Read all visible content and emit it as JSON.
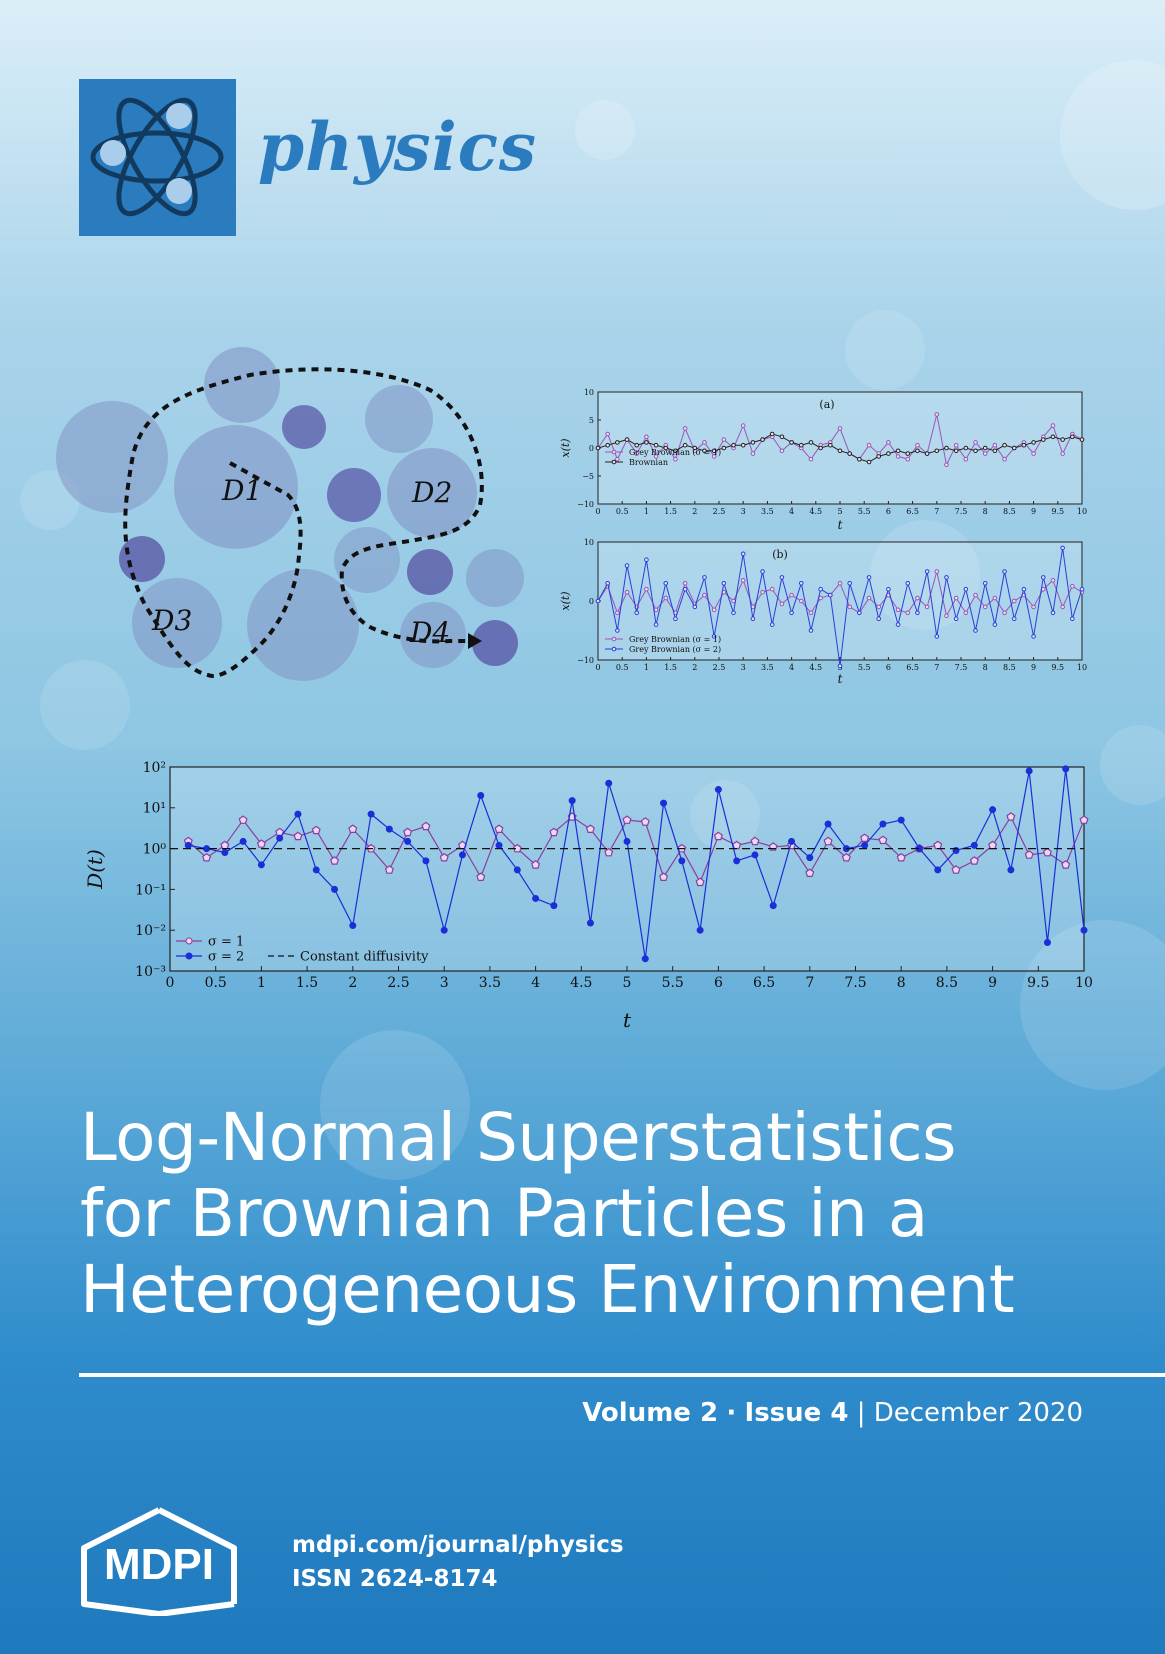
{
  "journal": {
    "name": "physics",
    "brand_color": "#2a7cbf"
  },
  "diagram": {
    "labels": [
      "D1",
      "D2",
      "D3",
      "D4"
    ]
  },
  "chart_data": [
    {
      "type": "line",
      "panel": "(a)",
      "ylabel": "x(t)",
      "xlabel": "t",
      "xlim": [
        0,
        10
      ],
      "ylim": [
        -10,
        10
      ],
      "yticks": [
        "10",
        "5",
        "0",
        "−5",
        "−10"
      ],
      "xticks": [
        "0",
        "0.5",
        "1",
        "1.5",
        "2",
        "2.5",
        "3",
        "3.5",
        "4",
        "4.5",
        "5",
        "5.5",
        "6",
        "6.5",
        "7",
        "7.5",
        "8",
        "8.5",
        "9",
        "9.5",
        "10"
      ],
      "series": [
        {
          "name": "Grey Brownian (σ = 1)",
          "color": "#9a55b8",
          "x": [
            0,
            0.2,
            0.4,
            0.6,
            0.8,
            1,
            1.2,
            1.4,
            1.6,
            1.8,
            2,
            2.2,
            2.4,
            2.6,
            2.8,
            3,
            3.2,
            3.4,
            3.6,
            3.8,
            4,
            4.2,
            4.4,
            4.6,
            4.8,
            5,
            5.2,
            5.4,
            5.6,
            5.8,
            6,
            6.2,
            6.4,
            6.6,
            6.8,
            7,
            7.2,
            7.4,
            7.6,
            7.8,
            8,
            8.2,
            8.4,
            8.6,
            8.8,
            9,
            9.2,
            9.4,
            9.6,
            9.8,
            10
          ],
          "y": [
            0,
            2.5,
            -2,
            1.5,
            -1,
            2,
            -1.5,
            0.5,
            -2,
            3.5,
            -0.5,
            1,
            -1.5,
            1.5,
            0,
            4,
            -1,
            1.5,
            2,
            -0.5,
            1,
            0,
            -2,
            0.5,
            1,
            3.5,
            -1,
            -2,
            0.5,
            -1,
            1,
            -1.5,
            -2,
            0.5,
            -1,
            6,
            -3,
            0.5,
            -2,
            1,
            -1,
            0.5,
            -2,
            0,
            1,
            -1,
            2,
            4,
            -1,
            2.5,
            1.5
          ]
        },
        {
          "name": "Brownian",
          "color": "#222222",
          "x": [
            0,
            0.2,
            0.4,
            0.6,
            0.8,
            1,
            1.2,
            1.4,
            1.6,
            1.8,
            2,
            2.2,
            2.4,
            2.6,
            2.8,
            3,
            3.2,
            3.4,
            3.6,
            3.8,
            4,
            4.2,
            4.4,
            4.6,
            4.8,
            5,
            5.2,
            5.4,
            5.6,
            5.8,
            6,
            6.2,
            6.4,
            6.6,
            6.8,
            7,
            7.2,
            7.4,
            7.6,
            7.8,
            8,
            8.2,
            8.4,
            8.6,
            8.8,
            9,
            9.2,
            9.4,
            9.6,
            9.8,
            10
          ],
          "y": [
            0,
            0.5,
            1,
            1.5,
            0.5,
            1,
            0.5,
            0,
            -0.5,
            0.5,
            0,
            -0.5,
            -0.5,
            0,
            0.5,
            0.5,
            1,
            1.5,
            2.5,
            2,
            1,
            0.5,
            1,
            0,
            0.5,
            -0.5,
            -1,
            -2,
            -2.5,
            -1.5,
            -1,
            -0.5,
            -1,
            -0.5,
            -1,
            -0.5,
            0,
            -0.5,
            0,
            -0.5,
            0,
            -0.5,
            0.5,
            0,
            0.5,
            1,
            1.5,
            2,
            1.5,
            2,
            1.5
          ]
        }
      ]
    },
    {
      "type": "line",
      "panel": "(b)",
      "ylabel": "x(t)",
      "xlabel": "t",
      "xlim": [
        0,
        10
      ],
      "ylim": [
        -10,
        10
      ],
      "yticks": [
        "10",
        "0",
        "−10"
      ],
      "xticks": [
        "0",
        "0.5",
        "1",
        "1.5",
        "2",
        "2.5",
        "3",
        "3.5",
        "4",
        "4.5",
        "5",
        "5.5",
        "6",
        "6.5",
        "7",
        "7.5",
        "8",
        "8.5",
        "9",
        "9.5",
        "10"
      ],
      "series": [
        {
          "name": "Grey Brownian (σ = 1)",
          "color": "#9a55b8",
          "x": [
            0,
            0.2,
            0.4,
            0.6,
            0.8,
            1,
            1.2,
            1.4,
            1.6,
            1.8,
            2,
            2.2,
            2.4,
            2.6,
            2.8,
            3,
            3.2,
            3.4,
            3.6,
            3.8,
            4,
            4.2,
            4.4,
            4.6,
            4.8,
            5,
            5.2,
            5.4,
            5.6,
            5.8,
            6,
            6.2,
            6.4,
            6.6,
            6.8,
            7,
            7.2,
            7.4,
            7.6,
            7.8,
            8,
            8.2,
            8.4,
            8.6,
            8.8,
            9,
            9.2,
            9.4,
            9.6,
            9.8,
            10
          ],
          "y": [
            0,
            2.5,
            -2,
            1.5,
            -1,
            2,
            -1.5,
            0.5,
            -2,
            3,
            -0.5,
            1,
            -1.5,
            1.5,
            0,
            3.5,
            -1,
            1.5,
            2,
            -0.5,
            1,
            0,
            -2,
            0.5,
            1,
            3,
            -1,
            -2,
            0.5,
            -1,
            1,
            -1.5,
            -2,
            0.5,
            -1,
            5,
            -2.5,
            0.5,
            -2,
            1,
            -1,
            0.5,
            -2,
            0,
            1,
            -1,
            2,
            3.5,
            -1,
            2.5,
            1.5
          ]
        },
        {
          "name": "Grey Brownian (σ = 2)",
          "color": "#2a3fd6",
          "x": [
            0,
            0.2,
            0.4,
            0.6,
            0.8,
            1,
            1.2,
            1.4,
            1.6,
            1.8,
            2,
            2.2,
            2.4,
            2.6,
            2.8,
            3,
            3.2,
            3.4,
            3.6,
            3.8,
            4,
            4.2,
            4.4,
            4.6,
            4.8,
            5,
            5.2,
            5.4,
            5.6,
            5.8,
            6,
            6.2,
            6.4,
            6.6,
            6.8,
            7,
            7.2,
            7.4,
            7.6,
            7.8,
            8,
            8.2,
            8.4,
            8.6,
            8.8,
            9,
            9.2,
            9.4,
            9.6,
            9.8,
            10
          ],
          "y": [
            0,
            3,
            -5,
            6,
            -2,
            7,
            -4,
            3,
            -3,
            2,
            -1,
            4,
            -6,
            3,
            -2,
            8,
            -3,
            5,
            -4,
            4,
            -2,
            3,
            -5,
            2,
            1,
            -11,
            3,
            -2,
            4,
            -3,
            2,
            -4,
            3,
            -2,
            5,
            -6,
            4,
            -3,
            2,
            -5,
            3,
            -4,
            5,
            -3,
            2,
            -6,
            4,
            -2,
            9,
            -3,
            2
          ]
        }
      ]
    },
    {
      "type": "line",
      "ylabel": "D(t)",
      "xlabel": "t",
      "xlim": [
        0,
        10
      ],
      "yscale": "log",
      "ylim": [
        0.001,
        100
      ],
      "yticks": [
        "10²",
        "10¹",
        "10⁰",
        "10⁻¹",
        "10⁻²",
        "10⁻³"
      ],
      "xticks": [
        "0",
        "0.5",
        "1",
        "1.5",
        "2",
        "2.5",
        "3",
        "3.5",
        "4",
        "4.5",
        "5",
        "5.5",
        "6",
        "6.5",
        "7",
        "7.5",
        "8",
        "8.5",
        "9",
        "9.5",
        "10"
      ],
      "legend": "bottom-left",
      "series": [
        {
          "name": "σ = 1",
          "color": "#8a3fa0",
          "marker": "pentagon",
          "x": [
            0.2,
            0.4,
            0.6,
            0.8,
            1,
            1.2,
            1.4,
            1.6,
            1.8,
            2,
            2.2,
            2.4,
            2.6,
            2.8,
            3,
            3.2,
            3.4,
            3.6,
            3.8,
            4,
            4.2,
            4.4,
            4.6,
            4.8,
            5,
            5.2,
            5.4,
            5.6,
            5.8,
            6,
            6.2,
            6.4,
            6.6,
            6.8,
            7,
            7.2,
            7.4,
            7.6,
            7.8,
            8,
            8.2,
            8.4,
            8.6,
            8.8,
            9,
            9.2,
            9.4,
            9.6,
            9.8,
            10
          ],
          "y": [
            1.5,
            0.6,
            1.2,
            5,
            1.3,
            2.5,
            2,
            2.8,
            0.5,
            3,
            1,
            0.3,
            2.5,
            3.5,
            0.6,
            1.2,
            0.2,
            3,
            1,
            0.4,
            2.5,
            6,
            3,
            0.8,
            5,
            4.5,
            0.2,
            1,
            0.15,
            2,
            1.2,
            1.5,
            1.1,
            1.2,
            0.25,
            1.5,
            0.6,
            1.8,
            1.6,
            0.6,
            1,
            1.2,
            0.3,
            0.5,
            1.2,
            6,
            0.7,
            0.8,
            0.4,
            5
          ]
        },
        {
          "name": "σ = 2",
          "color": "#1a2fd6",
          "marker": "circle",
          "x": [
            0.2,
            0.4,
            0.6,
            0.8,
            1,
            1.2,
            1.4,
            1.6,
            1.8,
            2,
            2.2,
            2.4,
            2.6,
            2.8,
            3,
            3.2,
            3.4,
            3.6,
            3.8,
            4,
            4.2,
            4.4,
            4.6,
            4.8,
            5,
            5.2,
            5.4,
            5.6,
            5.8,
            6,
            6.2,
            6.4,
            6.6,
            6.8,
            7,
            7.2,
            7.4,
            7.6,
            7.8,
            8,
            8.2,
            8.4,
            8.6,
            8.8,
            9,
            9.2,
            9.4,
            9.6,
            9.8,
            10
          ],
          "y": [
            1.2,
            1,
            0.8,
            1.5,
            0.4,
            1.8,
            7,
            0.3,
            0.1,
            0.013,
            7,
            3,
            1.5,
            0.5,
            0.01,
            0.7,
            20,
            1.2,
            0.3,
            0.06,
            0.04,
            15,
            0.015,
            40,
            1.5,
            0.002,
            13,
            0.5,
            0.01,
            28,
            0.5,
            0.7,
            0.04,
            1.5,
            0.6,
            4,
            1,
            1.2,
            4,
            5,
            1,
            0.3,
            0.9,
            1.2,
            9,
            0.3,
            80,
            0.005,
            90,
            0.01
          ]
        },
        {
          "name": "Constant diffusivity",
          "color": "#111111",
          "style": "dashed",
          "x": [
            0,
            10
          ],
          "y": [
            1,
            1
          ]
        }
      ]
    }
  ],
  "article": {
    "title_lines": [
      "Log-Normal Superstatistics",
      "for Brownian Particles in a",
      "Heterogeneous Environment"
    ]
  },
  "issue": {
    "volume": "Volume 2",
    "separator_dot": "·",
    "issue": "Issue 4",
    "pipe": "|",
    "date": "December 2020"
  },
  "footer": {
    "publisher": "MDPI",
    "url": "mdpi.com/journal/physics",
    "issn": "ISSN 2624-8174"
  }
}
